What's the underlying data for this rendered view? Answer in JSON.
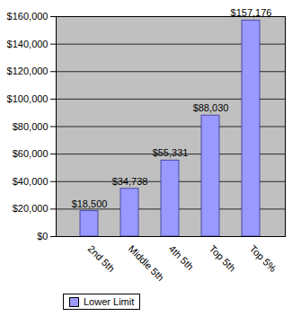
{
  "chart_data": {
    "type": "bar",
    "categories": [
      "2nd 5th",
      "Middle 5th",
      "4th 5th",
      "Top 5th",
      "Top 5%"
    ],
    "series": [
      {
        "name": "Lower Limit",
        "color": "#9999ff",
        "values": [
          18500,
          34738,
          55331,
          88030,
          157176
        ],
        "value_labels": [
          "$18,500",
          "$34,738",
          "$55,331",
          "$88,030",
          "$157,176"
        ]
      }
    ],
    "ylim": [
      0,
      160000
    ],
    "yticks": [
      {
        "value": 0,
        "label": "$0"
      },
      {
        "value": 20000,
        "label": "$20,000"
      },
      {
        "value": 40000,
        "label": "$40,000"
      },
      {
        "value": 60000,
        "label": "$60,000"
      },
      {
        "value": 80000,
        "label": "$80,000"
      },
      {
        "value": 100000,
        "label": "$100,000"
      },
      {
        "value": 120000,
        "label": "$120,000"
      },
      {
        "value": 140000,
        "label": "$140,000"
      },
      {
        "value": 160000,
        "label": "$160,000"
      }
    ],
    "grid": true,
    "data_labels": true,
    "legend": "bottom"
  }
}
